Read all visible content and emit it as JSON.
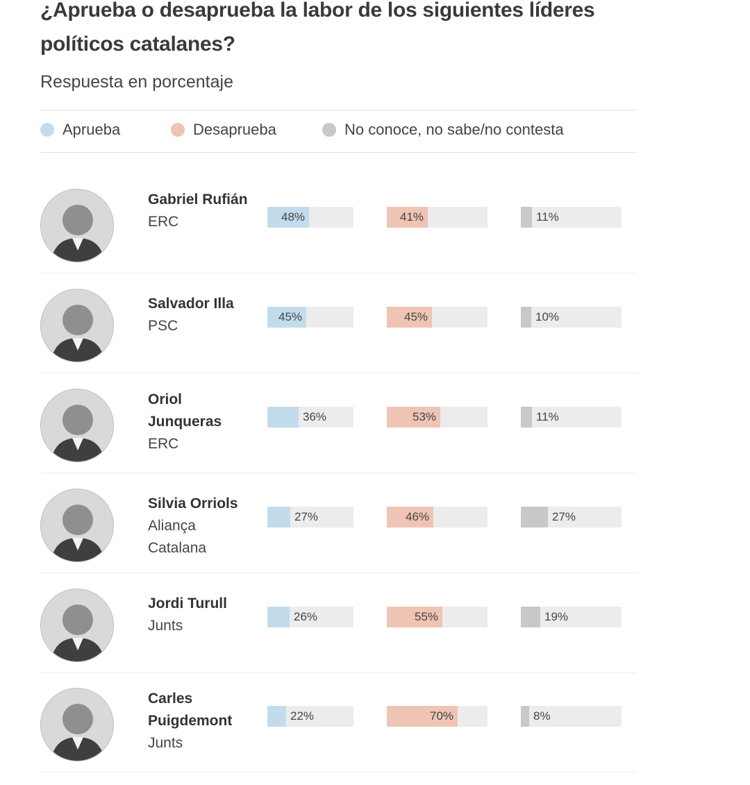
{
  "header": {
    "title": "¿Aprueba o desaprueba la labor de los siguientes líderes políticos catalanes?",
    "subtitle": "Respuesta en porcentaje"
  },
  "legend": [
    {
      "label": "Aprueba",
      "color": "#c2dcec"
    },
    {
      "label": "Desaprueba",
      "color": "#efc4b4"
    },
    {
      "label": "No conoce, no sabe/no contesta",
      "color": "#c8c8c9"
    }
  ],
  "chart_data": {
    "type": "bar",
    "title": "¿Aprueba o desaprueba la labor de los siguientes líderes políticos catalanes?",
    "subtitle": "Respuesta en porcentaje",
    "categories": [
      "Gabriel Rufián",
      "Salvador Illa",
      "Oriol Junqueras",
      "Silvia Orriols",
      "Jordi Turull",
      "Carles Puigdemont"
    ],
    "parties": [
      "ERC",
      "PSC",
      "ERC",
      "Aliança Catalana",
      "Junts",
      "Junts"
    ],
    "series": [
      {
        "name": "Aprueba",
        "values": [
          48,
          45,
          36,
          27,
          26,
          22
        ],
        "labels": [
          "48%",
          "45%",
          "36%",
          "27%",
          "26%",
          "22%"
        ]
      },
      {
        "name": "Desaprueba",
        "values": [
          41,
          45,
          53,
          46,
          55,
          70
        ],
        "labels": [
          "41%",
          "45%",
          "53%",
          "46%",
          "55%",
          "70%"
        ]
      },
      {
        "name": "No conoce, no sabe/no contesta",
        "values": [
          11,
          10,
          11,
          27,
          19,
          8
        ],
        "labels": [
          "11%",
          "10%",
          "11%",
          "27%",
          "19%",
          "8%"
        ]
      }
    ],
    "ylim": [
      0,
      100
    ],
    "grid": false,
    "legend_position": "top"
  },
  "leaders": [
    {
      "name": "Gabriel Rufián",
      "party": "ERC",
      "photo": "portrait-icon"
    },
    {
      "name": "Salvador Illa",
      "party": "PSC",
      "photo": "portrait-icon"
    },
    {
      "name": "Oriol Junqueras",
      "party": "ERC",
      "photo": "portrait-icon"
    },
    {
      "name": "Silvia Orriols",
      "party": "Aliança Catalana",
      "photo": "portrait-icon"
    },
    {
      "name": "Jordi Turull",
      "party": "Junts",
      "photo": "portrait-icon"
    },
    {
      "name": "Carles Puigdemont",
      "party": "Junts",
      "photo": "portrait-icon"
    }
  ]
}
